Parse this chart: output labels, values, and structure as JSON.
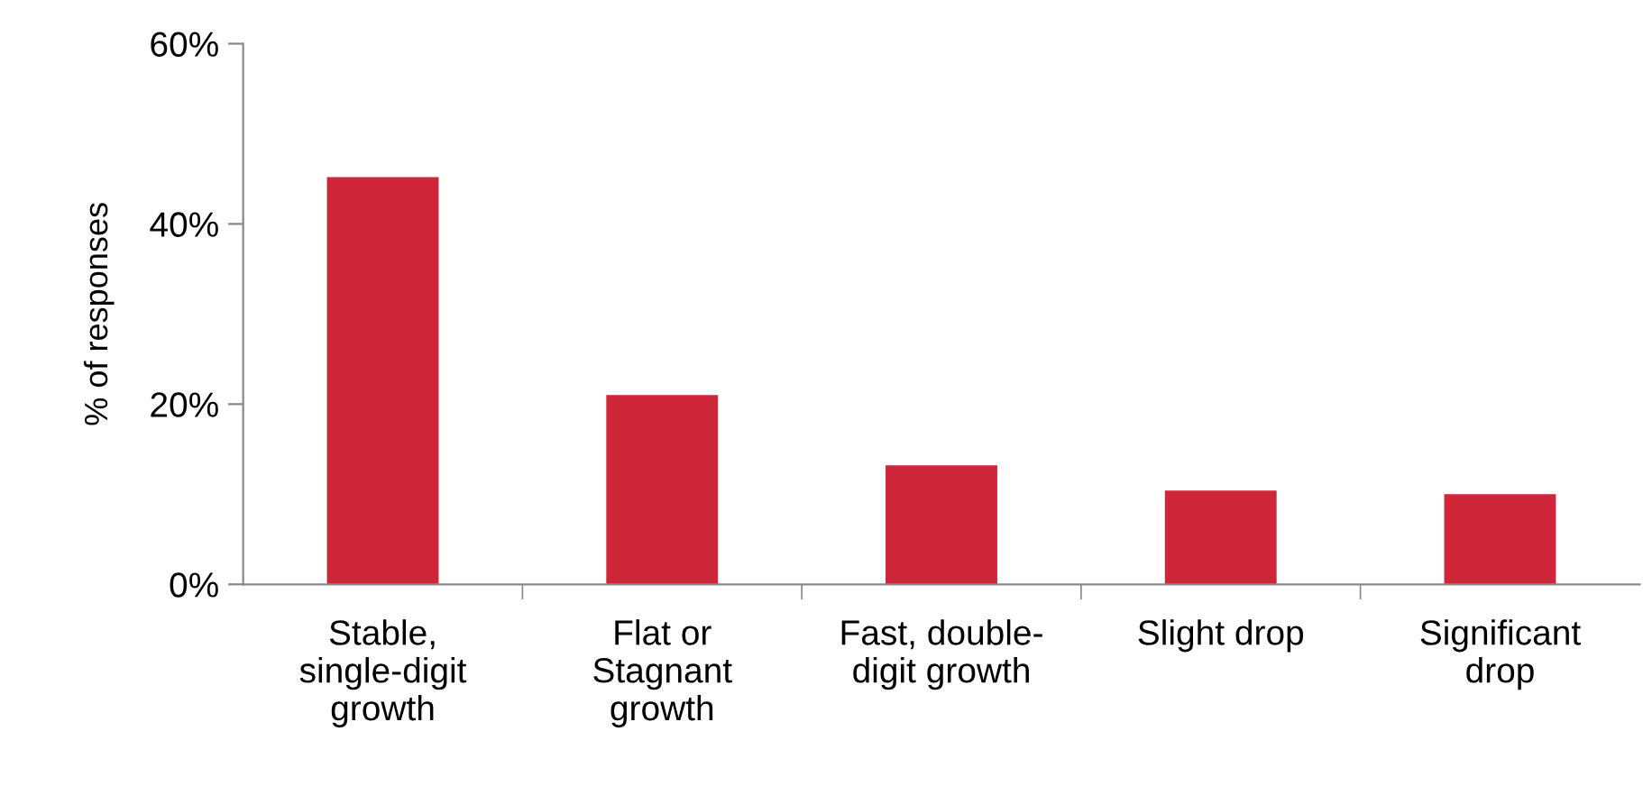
{
  "chart_data": {
    "type": "bar",
    "ylabel": "% of responses",
    "categories": [
      "Stable,\nsingle-digit\ngrowth",
      "Flat or\nStagnant\ngrowth",
      "Fast, double-\ndigit growth",
      "Slight drop",
      "Significant\ndrop"
    ],
    "values": [
      45.2,
      21,
      13.2,
      10.4,
      10
    ],
    "color": "#d0263a",
    "ylim": [
      0,
      60
    ],
    "yticks": [
      {
        "value": 0,
        "label": "0%"
      },
      {
        "value": 20,
        "label": "20%"
      },
      {
        "value": 40,
        "label": "40%"
      },
      {
        "value": 60,
        "label": "60%"
      }
    ],
    "grid": false,
    "legend": false
  }
}
